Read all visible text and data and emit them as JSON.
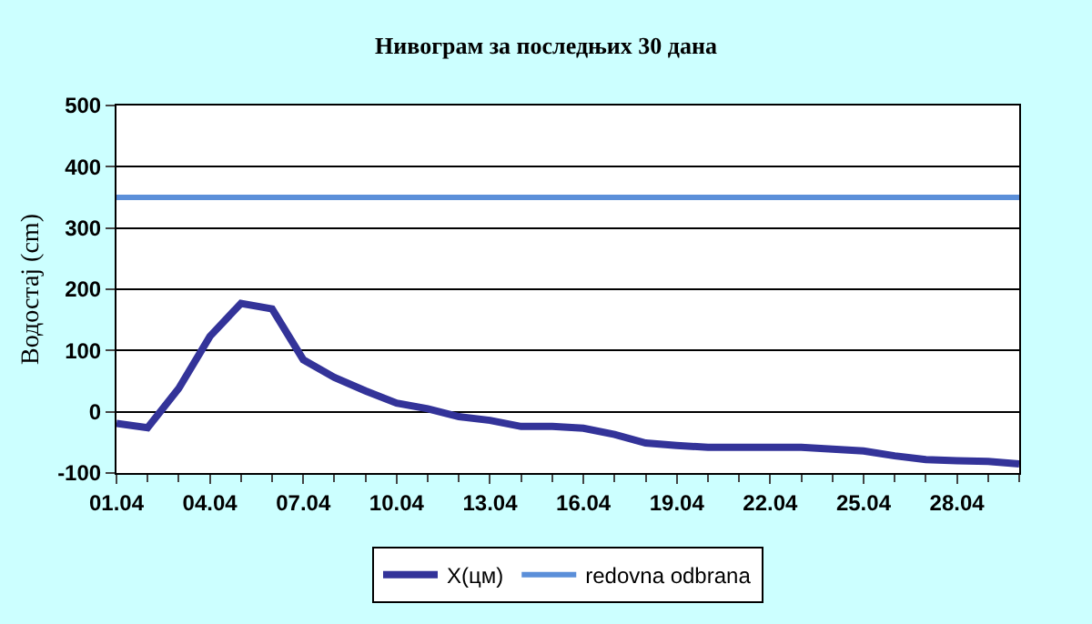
{
  "chart_data": {
    "type": "line",
    "title": "Нивограм за последњих 30 дана",
    "ylabel": "Водостај (cm)",
    "categories": [
      "01.04",
      null,
      null,
      "04.04",
      null,
      null,
      "07.04",
      null,
      null,
      "10.04",
      null,
      null,
      "13.04",
      null,
      null,
      "16.04",
      null,
      null,
      "19.04",
      null,
      null,
      "22.04",
      null,
      null,
      "25.04",
      null,
      null,
      "28.04",
      null,
      null
    ],
    "series": [
      {
        "name": "X(цм)",
        "color": "#333399",
        "values": [
          -19,
          -26,
          38,
          123,
          177,
          168,
          85,
          56,
          34,
          14,
          5,
          -8,
          -14,
          -24,
          -24,
          -27,
          -37,
          -51,
          -55,
          -58,
          -58,
          -58,
          -58,
          -61,
          -64,
          -72,
          -78,
          -80,
          -81,
          -85
        ]
      },
      {
        "name": "redovna odbrana",
        "color": "#5b8fd9",
        "values": [
          350,
          350,
          350,
          350,
          350,
          350,
          350,
          350,
          350,
          350,
          350,
          350,
          350,
          350,
          350,
          350,
          350,
          350,
          350,
          350,
          350,
          350,
          350,
          350,
          350,
          350,
          350,
          350,
          350,
          350
        ]
      }
    ],
    "ylim": [
      -100,
      500
    ],
    "yticks": [
      -100,
      0,
      100,
      200,
      300,
      400,
      500
    ],
    "grid": "y",
    "legend": "bottom",
    "marker": "none",
    "line_style": "solid"
  }
}
